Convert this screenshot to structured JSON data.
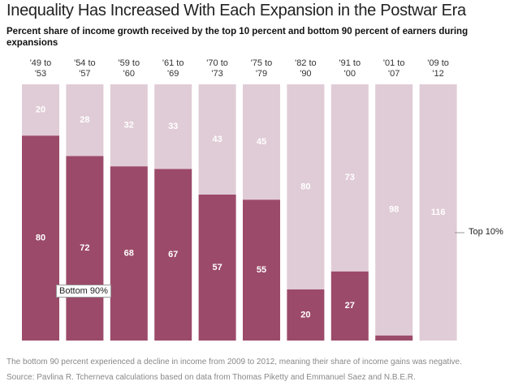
{
  "chart_data": {
    "type": "stacked_bar",
    "title": "Inequality Has Increased With Each Expansion in the Postwar Era",
    "subtitle": "Percent share of income growth received by the top 10 percent and bottom 90 percent of earners during expansions",
    "categories": [
      "'49 to '53",
      "'54 to '57",
      "'59 to '60",
      "'61 to '69",
      "'70 to '73",
      "'75 to '79",
      "'82 to '90",
      "'91 to '00",
      "'01 to '07",
      "'09 to '12"
    ],
    "series": [
      {
        "name": "Bottom 90%",
        "color": "#9c4a6a",
        "values": [
          80,
          72,
          68,
          67,
          57,
          55,
          20,
          27,
          2,
          null
        ]
      },
      {
        "name": "Top 10%",
        "color": "#e0ccd6",
        "values": [
          20,
          28,
          32,
          33,
          43,
          45,
          80,
          73,
          98,
          116
        ]
      }
    ],
    "notes": [
      "The bottom 90 percent experienced a decline in income from 2009 to 2012, meaning their share of income gains was negative.",
      "Source: Pavlina R. Tcherneva calculations based on data from Thomas Piketty and Emmanuel Saez and N.B.E.R."
    ]
  }
}
